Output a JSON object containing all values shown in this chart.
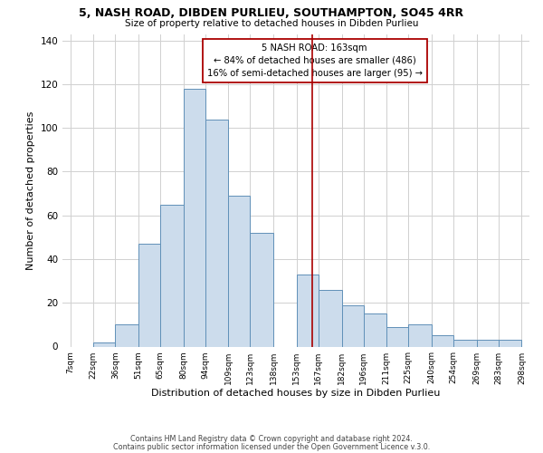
{
  "title": "5, NASH ROAD, DIBDEN PURLIEU, SOUTHAMPTON, SO45 4RR",
  "subtitle": "Size of property relative to detached houses in Dibden Purlieu",
  "xlabel": "Distribution of detached houses by size in Dibden Purlieu",
  "ylabel": "Number of detached properties",
  "bar_edges": [
    7,
    22,
    36,
    51,
    65,
    80,
    94,
    109,
    123,
    138,
    153,
    167,
    182,
    196,
    211,
    225,
    240,
    254,
    269,
    283,
    298
  ],
  "bar_heights": [
    0,
    2,
    10,
    47,
    65,
    118,
    104,
    69,
    52,
    0,
    33,
    26,
    19,
    15,
    9,
    10,
    5,
    3,
    3,
    3
  ],
  "bar_color": "#ccdcec",
  "bar_edgecolor": "#6090b8",
  "property_line_x": 163,
  "property_line_color": "#aa0000",
  "annotation_line1": "5 NASH ROAD: 163sqm",
  "annotation_line2": "← 84% of detached houses are smaller (486)",
  "annotation_line3": "16% of semi-detached houses are larger (95) →",
  "annotation_box_edgecolor": "#aa0000",
  "annotation_box_facecolor": "#ffffff",
  "ylim": [
    0,
    143
  ],
  "tick_labels": [
    "7sqm",
    "22sqm",
    "36sqm",
    "51sqm",
    "65sqm",
    "80sqm",
    "94sqm",
    "109sqm",
    "123sqm",
    "138sqm",
    "153sqm",
    "167sqm",
    "182sqm",
    "196sqm",
    "211sqm",
    "225sqm",
    "240sqm",
    "254sqm",
    "269sqm",
    "283sqm",
    "298sqm"
  ],
  "footnote1": "Contains HM Land Registry data © Crown copyright and database right 2024.",
  "footnote2": "Contains public sector information licensed under the Open Government Licence v.3.0.",
  "bg_color": "#ffffff",
  "grid_color": "#d0d0d0"
}
